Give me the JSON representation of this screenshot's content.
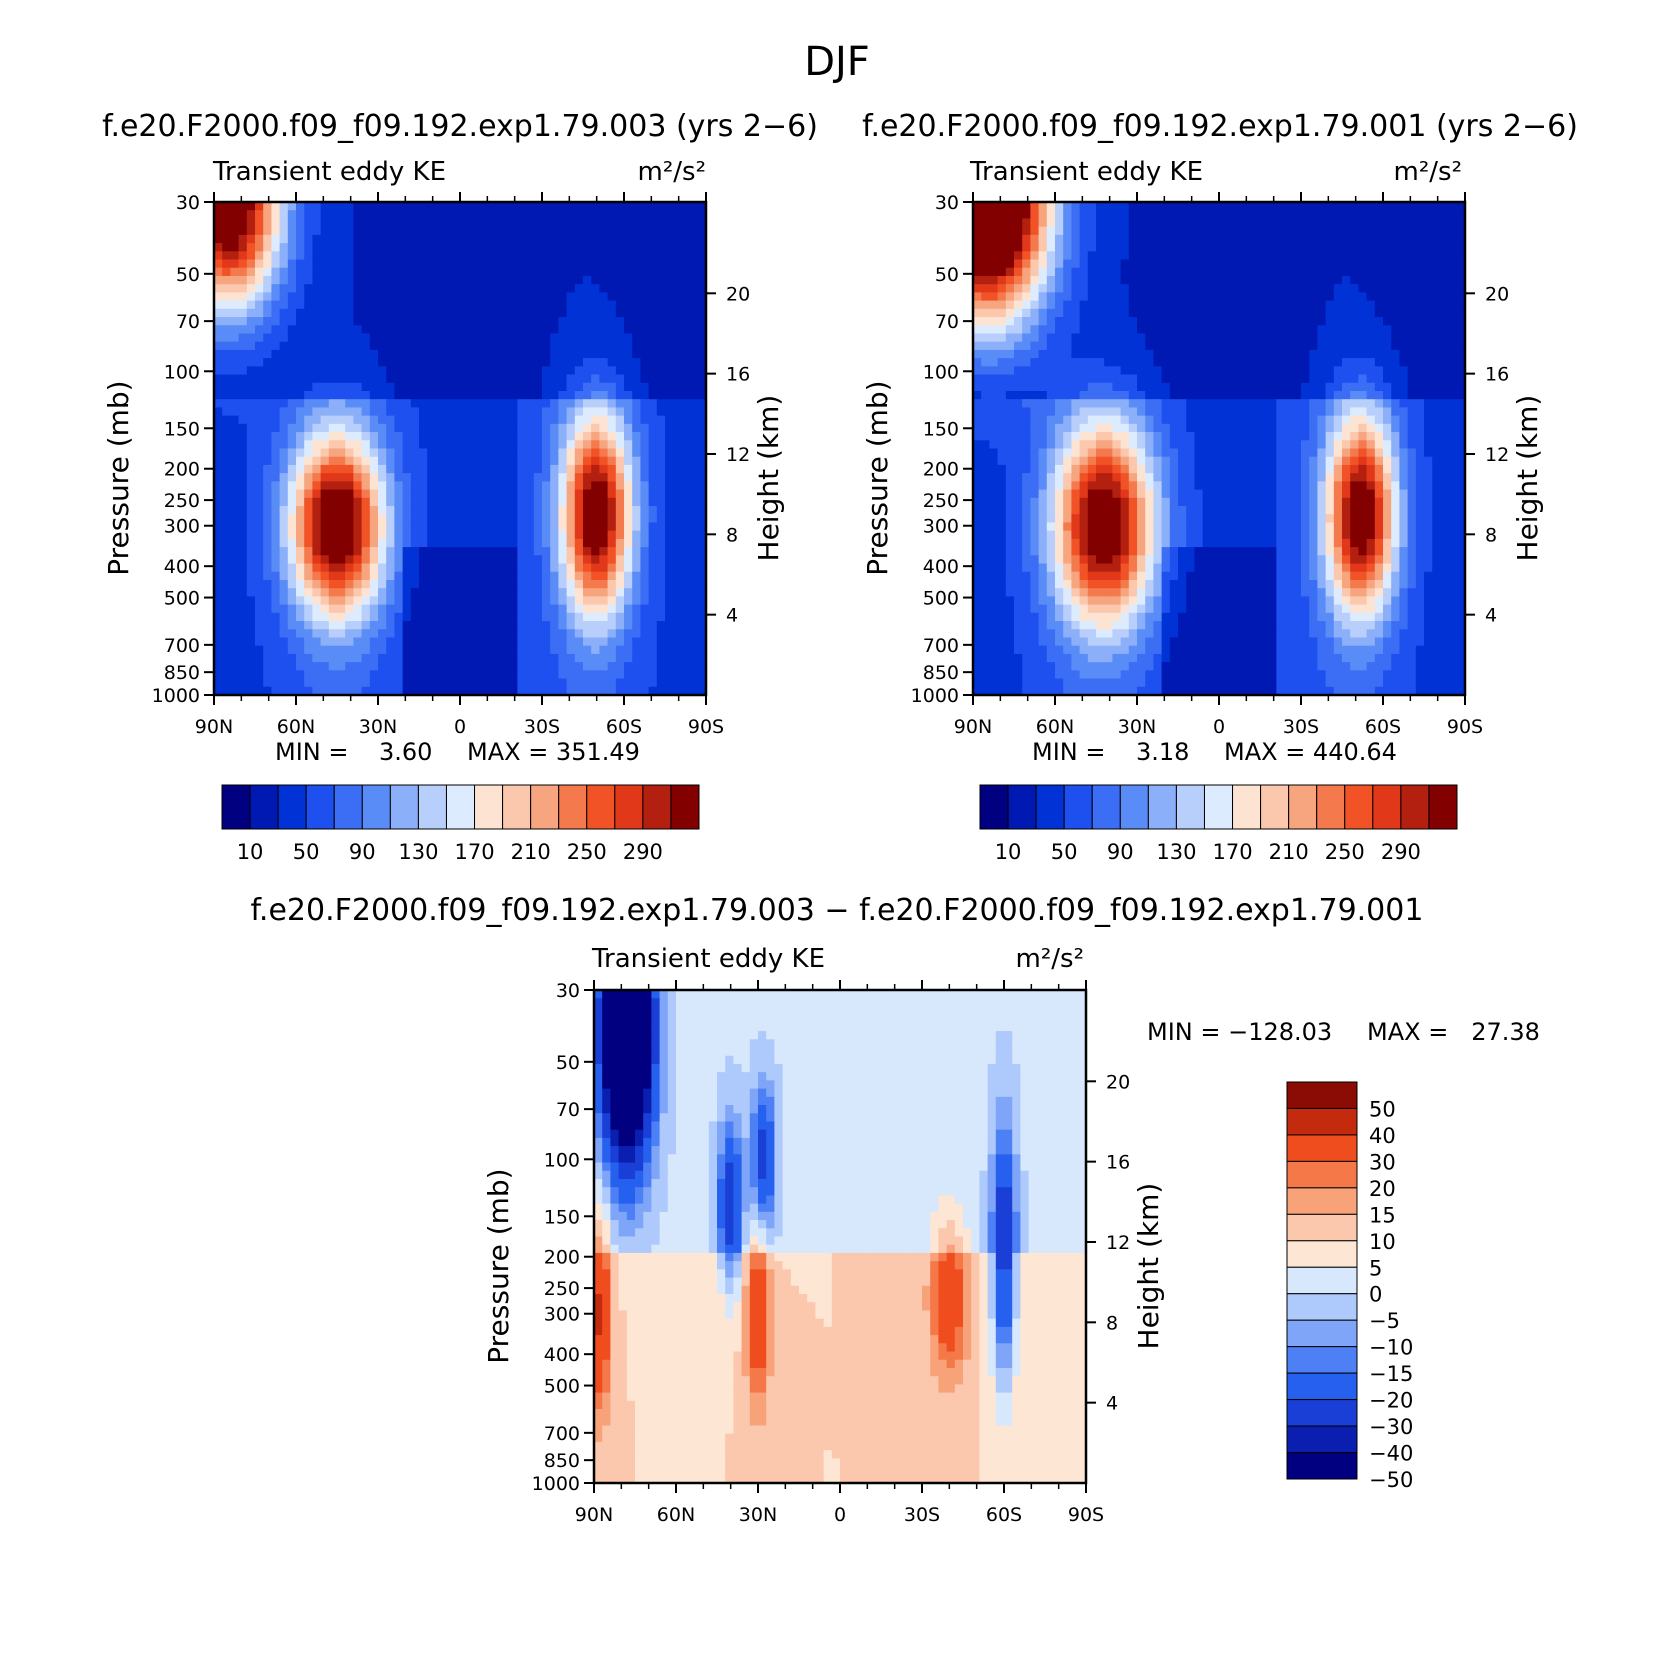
{
  "figure_title": "DJF",
  "units_label": "m²/s²",
  "colors": {
    "abs_scale": [
      "#000080",
      "#0019b3",
      "#0032d6",
      "#1e50f0",
      "#3c6ef5",
      "#5a8cf8",
      "#8caff9",
      "#b9cffb",
      "#dcebfd",
      "#fde3d2",
      "#fbc7ad",
      "#f7a57f",
      "#f47a4e",
      "#f25326",
      "#e2381a",
      "#b4200f",
      "#820000"
    ],
    "diff_scale": [
      "#000080",
      "#0a1fb0",
      "#1a3fd6",
      "#2660ee",
      "#4e80f5",
      "#7ea5f8",
      "#aec9fb",
      "#d7e8fd",
      "#fde6d4",
      "#fbc7ad",
      "#f8a27a",
      "#f47848",
      "#f04d1f",
      "#c42a0d",
      "#8a0c05"
    ]
  },
  "chart_data": [
    {
      "type": "heatmap",
      "title": "f.e20.F2000.f09_f09.192.exp1.79.003 (yrs 2−6)",
      "subtitle": "Transient eddy KE",
      "units": "m²/s²",
      "xlabel": "",
      "ylabel": "Pressure (mb)",
      "ylabel_right": "Height (km)",
      "xticks": [
        "90N",
        "60N",
        "30N",
        "0",
        "30S",
        "60S",
        "90S"
      ],
      "xlim": [
        90,
        -90
      ],
      "yticks": [
        30,
        50,
        70,
        100,
        150,
        200,
        250,
        300,
        400,
        500,
        700,
        850,
        1000
      ],
      "ylim": [
        1000,
        30
      ],
      "yscale": "log",
      "height_ticks": [
        20,
        16,
        12,
        8,
        4
      ],
      "min_text": "MIN =    3.60",
      "max_text": "MAX = 351.49",
      "min": 3.6,
      "max": 351.49,
      "colorbar_labels": [
        "10",
        "50",
        "90",
        "130",
        "170",
        "210",
        "250",
        "290"
      ],
      "levels": [
        10,
        30,
        50,
        70,
        90,
        110,
        130,
        150,
        170,
        190,
        210,
        230,
        250,
        270,
        290,
        310
      ],
      "features": [
        {
          "type": "peak",
          "lat": 45,
          "p": 300,
          "value": 300,
          "sx": 12,
          "sy": 0.45
        },
        {
          "type": "peak",
          "lat": -50,
          "p": 280,
          "value": 285,
          "sx": 9,
          "sy": 0.5
        },
        {
          "type": "peak",
          "lat": 85,
          "p": 30,
          "value": 351,
          "sx": 14,
          "sy": 0.55
        }
      ]
    },
    {
      "type": "heatmap",
      "title": "f.e20.F2000.f09_f09.192.exp1.79.001 (yrs 2−6)",
      "subtitle": "Transient eddy KE",
      "units": "m²/s²",
      "xlabel": "",
      "ylabel": "Pressure (mb)",
      "ylabel_right": "Height (km)",
      "xticks": [
        "90N",
        "60N",
        "30N",
        "0",
        "30S",
        "60S",
        "90S"
      ],
      "xlim": [
        90,
        -90
      ],
      "yticks": [
        30,
        50,
        70,
        100,
        150,
        200,
        250,
        300,
        400,
        500,
        700,
        850,
        1000
      ],
      "ylim": [
        1000,
        30
      ],
      "yscale": "log",
      "height_ticks": [
        20,
        16,
        12,
        8,
        4
      ],
      "min_text": "MIN =    3.18",
      "max_text": "MAX = 440.64",
      "min": 3.18,
      "max": 440.64,
      "colorbar_labels": [
        "10",
        "50",
        "90",
        "130",
        "170",
        "210",
        "250",
        "290"
      ],
      "levels": [
        10,
        30,
        50,
        70,
        90,
        110,
        130,
        150,
        170,
        190,
        210,
        230,
        250,
        270,
        290,
        310
      ],
      "features": [
        {
          "type": "peak",
          "lat": 42,
          "p": 300,
          "value": 290,
          "sx": 13,
          "sy": 0.5
        },
        {
          "type": "peak",
          "lat": -52,
          "p": 280,
          "value": 285,
          "sx": 9,
          "sy": 0.5
        },
        {
          "type": "peak",
          "lat": 85,
          "p": 30,
          "value": 440,
          "sx": 16,
          "sy": 0.6
        }
      ]
    },
    {
      "type": "heatmap",
      "title": "f.e20.F2000.f09_f09.192.exp1.79.003 − f.e20.F2000.f09_f09.192.exp1.79.001",
      "subtitle": "Transient eddy KE",
      "units": "m²/s²",
      "xlabel": "",
      "ylabel": "Pressure (mb)",
      "ylabel_right": "Height (km)",
      "xticks": [
        "90N",
        "60N",
        "30N",
        "0",
        "30S",
        "60S",
        "90S"
      ],
      "xlim": [
        90,
        -90
      ],
      "yticks": [
        30,
        50,
        70,
        100,
        150,
        200,
        250,
        300,
        400,
        500,
        700,
        850,
        1000
      ],
      "ylim": [
        1000,
        30
      ],
      "yscale": "log",
      "height_ticks": [
        20,
        16,
        12,
        8,
        4
      ],
      "min_text": "MIN = −128.03",
      "max_text": "MAX =   27.38",
      "min": -128.03,
      "max": 27.38,
      "colorbar_labels": [
        "50",
        "40",
        "30",
        "20",
        "15",
        "10",
        "5",
        "0",
        "−5",
        "−10",
        "−15",
        "−20",
        "−30",
        "−40",
        "−50"
      ],
      "levels": [
        -50,
        -40,
        -30,
        -20,
        -15,
        -10,
        -5,
        0,
        5,
        10,
        15,
        20,
        30,
        40,
        50
      ],
      "features": [
        {
          "type": "peak",
          "lat": 78,
          "p": 40,
          "value": -128,
          "sx": 6,
          "sy": 0.6
        },
        {
          "type": "peak",
          "lat": 88,
          "p": 300,
          "value": 27,
          "sx": 3,
          "sy": 0.5
        },
        {
          "type": "peak",
          "lat": 30,
          "p": 300,
          "value": 25,
          "sx": 3,
          "sy": 0.45
        },
        {
          "type": "peak",
          "lat": -40,
          "p": 270,
          "value": 22,
          "sx": 5,
          "sy": 0.4
        },
        {
          "type": "peak",
          "lat": -60,
          "p": 200,
          "value": -40,
          "sx": 3,
          "sy": 0.6
        },
        {
          "type": "peak",
          "lat": 40,
          "p": 140,
          "value": -35,
          "sx": 3,
          "sy": 0.4
        },
        {
          "type": "peak",
          "lat": 28,
          "p": 100,
          "value": -32,
          "sx": 3,
          "sy": 0.35
        }
      ]
    }
  ]
}
